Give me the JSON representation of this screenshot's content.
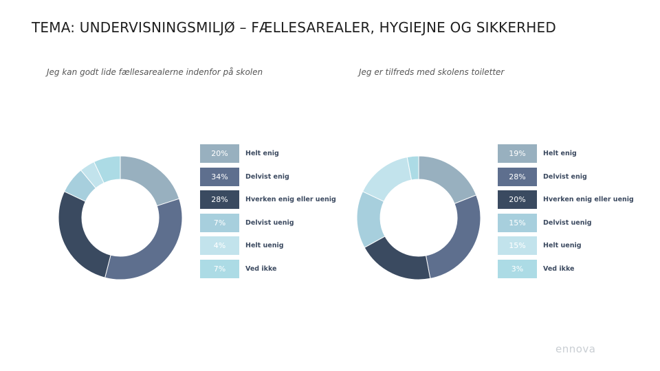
{
  "page": {
    "title": "TEMA: UNDERVISNINGSMILJØ – FÆLLESAREALER, HYGIEJNE OG SIKKERHED"
  },
  "logo": {
    "text": "ennova"
  },
  "legend_labels": [
    "Helt enig",
    "Delvist enig",
    "Hverken enig eller uenig",
    "Delvist uenig",
    "Helt uenig",
    "Ved ikke"
  ],
  "colors": [
    "#98b0bf",
    "#5e6f8e",
    "#3a4a60",
    "#a7cfdd",
    "#c2e3ec",
    "#acdbe5"
  ],
  "chart_data": [
    {
      "type": "pie",
      "title": "Jeg kan godt lide fællesarealerne indenfor på skolen",
      "categories": [
        "Helt enig",
        "Delvist enig",
        "Hverken enig eller uenig",
        "Delvist uenig",
        "Helt uenig",
        "Ved ikke"
      ],
      "values": [
        20,
        34,
        28,
        7,
        4,
        7
      ],
      "value_labels": [
        "20%",
        "34%",
        "28%",
        "7%",
        "4%",
        "7%"
      ],
      "legend": "right"
    },
    {
      "type": "pie",
      "title": "Jeg er tilfreds med skolens toiletter",
      "categories": [
        "Helt enig",
        "Delvist enig",
        "Hverken enig eller uenig",
        "Delvist uenig",
        "Helt uenig",
        "Ved ikke"
      ],
      "values": [
        19,
        28,
        20,
        15,
        15,
        3
      ],
      "value_labels": [
        "19%",
        "28%",
        "20%",
        "15%",
        "15%",
        "3%"
      ],
      "legend": "right"
    }
  ]
}
